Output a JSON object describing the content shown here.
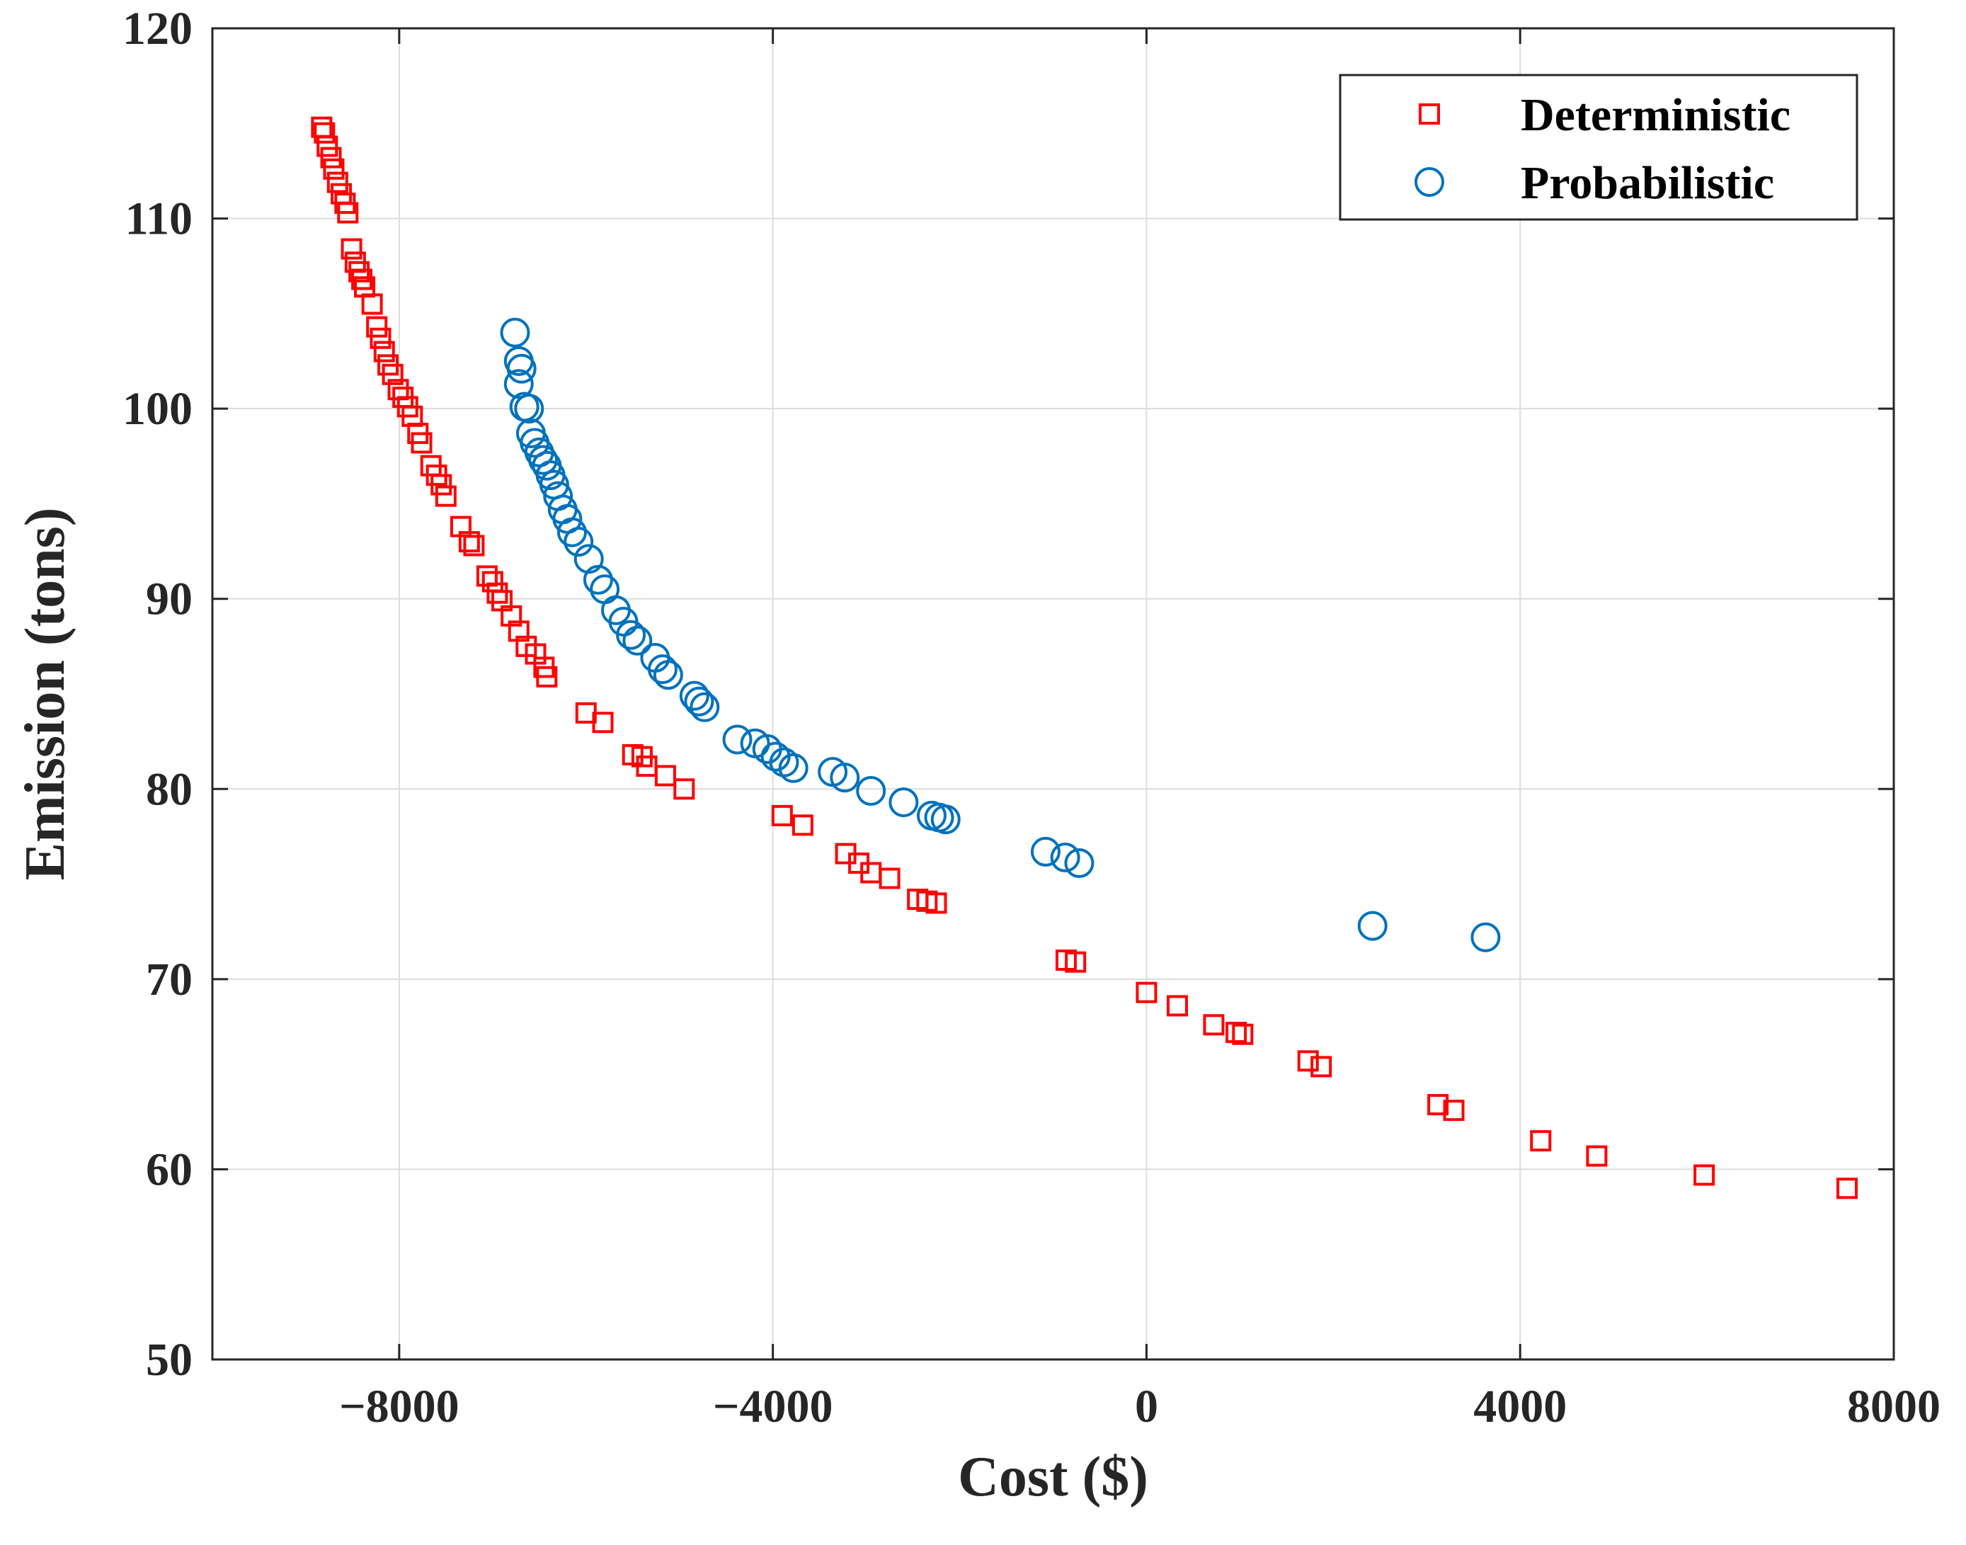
{
  "chart_data": {
    "type": "scatter",
    "xlabel": "Cost ($)",
    "ylabel": "Emission (tons)",
    "xlim": [
      -10000,
      8000
    ],
    "ylim": [
      50,
      120
    ],
    "xticks": [
      -8000,
      -4000,
      0,
      4000,
      8000
    ],
    "xtick_labels": [
      "−8000",
      "−4000",
      "0",
      "4000",
      "8000"
    ],
    "yticks": [
      50,
      60,
      70,
      80,
      90,
      100,
      110,
      120
    ],
    "ytick_labels": [
      "50",
      "60",
      "70",
      "80",
      "90",
      "100",
      "110",
      "120"
    ],
    "grid": true,
    "legend_position": "top-right",
    "series": [
      {
        "name": "Deterministic",
        "marker": "square",
        "color": "#ff0000",
        "points": [
          [
            -8830,
            114.8
          ],
          [
            -8800,
            114.5
          ],
          [
            -8770,
            113.8
          ],
          [
            -8730,
            113.2
          ],
          [
            -8700,
            112.6
          ],
          [
            -8660,
            111.9
          ],
          [
            -8620,
            111.3
          ],
          [
            -8580,
            110.8
          ],
          [
            -8550,
            110.3
          ],
          [
            -8510,
            108.4
          ],
          [
            -8470,
            107.7
          ],
          [
            -8430,
            107.2
          ],
          [
            -8400,
            106.8
          ],
          [
            -8370,
            106.4
          ],
          [
            -8290,
            105.5
          ],
          [
            -8240,
            104.3
          ],
          [
            -8200,
            103.7
          ],
          [
            -8160,
            103.0
          ],
          [
            -8120,
            102.3
          ],
          [
            -8070,
            101.8
          ],
          [
            -8010,
            101.0
          ],
          [
            -7960,
            100.6
          ],
          [
            -7910,
            100.1
          ],
          [
            -7860,
            99.6
          ],
          [
            -7800,
            98.7
          ],
          [
            -7760,
            98.2
          ],
          [
            -7660,
            97.0
          ],
          [
            -7600,
            96.5
          ],
          [
            -7550,
            96.0
          ],
          [
            -7500,
            95.4
          ],
          [
            -7340,
            93.8
          ],
          [
            -7250,
            93.0
          ],
          [
            -7200,
            92.8
          ],
          [
            -7060,
            91.2
          ],
          [
            -7000,
            90.9
          ],
          [
            -6950,
            90.3
          ],
          [
            -6900,
            89.9
          ],
          [
            -6800,
            89.1
          ],
          [
            -6720,
            88.3
          ],
          [
            -6640,
            87.5
          ],
          [
            -6540,
            87.1
          ],
          [
            -6450,
            86.4
          ],
          [
            -6420,
            85.9
          ],
          [
            -6000,
            84.0
          ],
          [
            -5820,
            83.5
          ],
          [
            -5500,
            81.8
          ],
          [
            -5400,
            81.7
          ],
          [
            -5350,
            81.2
          ],
          [
            -5150,
            80.7
          ],
          [
            -4950,
            80.0
          ],
          [
            -3900,
            78.6
          ],
          [
            -3680,
            78.1
          ],
          [
            -3220,
            76.6
          ],
          [
            -3080,
            76.1
          ],
          [
            -2950,
            75.6
          ],
          [
            -2750,
            75.3
          ],
          [
            -2450,
            74.2
          ],
          [
            -2350,
            74.1
          ],
          [
            -2250,
            74.0
          ],
          [
            -860,
            71.0
          ],
          [
            -760,
            70.9
          ],
          [
            0,
            69.3
          ],
          [
            330,
            68.6
          ],
          [
            720,
            67.6
          ],
          [
            960,
            67.2
          ],
          [
            1030,
            67.1
          ],
          [
            1730,
            65.7
          ],
          [
            1870,
            65.4
          ],
          [
            3120,
            63.4
          ],
          [
            3290,
            63.1
          ],
          [
            4220,
            61.5
          ],
          [
            4820,
            60.7
          ],
          [
            5970,
            59.7
          ],
          [
            7500,
            59.0
          ]
        ]
      },
      {
        "name": "Probabilistic",
        "marker": "circle",
        "color": "#0072bd",
        "points": [
          [
            -6760,
            104.0
          ],
          [
            -6720,
            102.5
          ],
          [
            -6690,
            102.1
          ],
          [
            -6720,
            101.3
          ],
          [
            -6660,
            100.1
          ],
          [
            -6610,
            100.0
          ],
          [
            -6590,
            98.7
          ],
          [
            -6550,
            98.2
          ],
          [
            -6500,
            97.7
          ],
          [
            -6460,
            97.3
          ],
          [
            -6420,
            97.0
          ],
          [
            -6380,
            96.5
          ],
          [
            -6340,
            96.0
          ],
          [
            -6300,
            95.4
          ],
          [
            -6250,
            94.7
          ],
          [
            -6200,
            94.2
          ],
          [
            -6150,
            93.5
          ],
          [
            -6080,
            93.0
          ],
          [
            -5970,
            92.1
          ],
          [
            -5870,
            91.0
          ],
          [
            -5800,
            90.5
          ],
          [
            -5680,
            89.4
          ],
          [
            -5600,
            88.8
          ],
          [
            -5520,
            88.1
          ],
          [
            -5450,
            87.8
          ],
          [
            -5260,
            86.9
          ],
          [
            -5180,
            86.3
          ],
          [
            -5120,
            86.0
          ],
          [
            -4840,
            84.9
          ],
          [
            -4790,
            84.6
          ],
          [
            -4730,
            84.3
          ],
          [
            -4380,
            82.6
          ],
          [
            -4190,
            82.4
          ],
          [
            -4060,
            82.1
          ],
          [
            -3970,
            81.7
          ],
          [
            -3880,
            81.4
          ],
          [
            -3780,
            81.1
          ],
          [
            -3360,
            80.9
          ],
          [
            -3230,
            80.6
          ],
          [
            -2950,
            79.9
          ],
          [
            -2600,
            79.3
          ],
          [
            -2300,
            78.6
          ],
          [
            -2220,
            78.5
          ],
          [
            -2150,
            78.4
          ],
          [
            -1080,
            76.7
          ],
          [
            -870,
            76.4
          ],
          [
            -720,
            76.1
          ],
          [
            2420,
            72.8
          ],
          [
            3630,
            72.2
          ]
        ]
      }
    ]
  }
}
